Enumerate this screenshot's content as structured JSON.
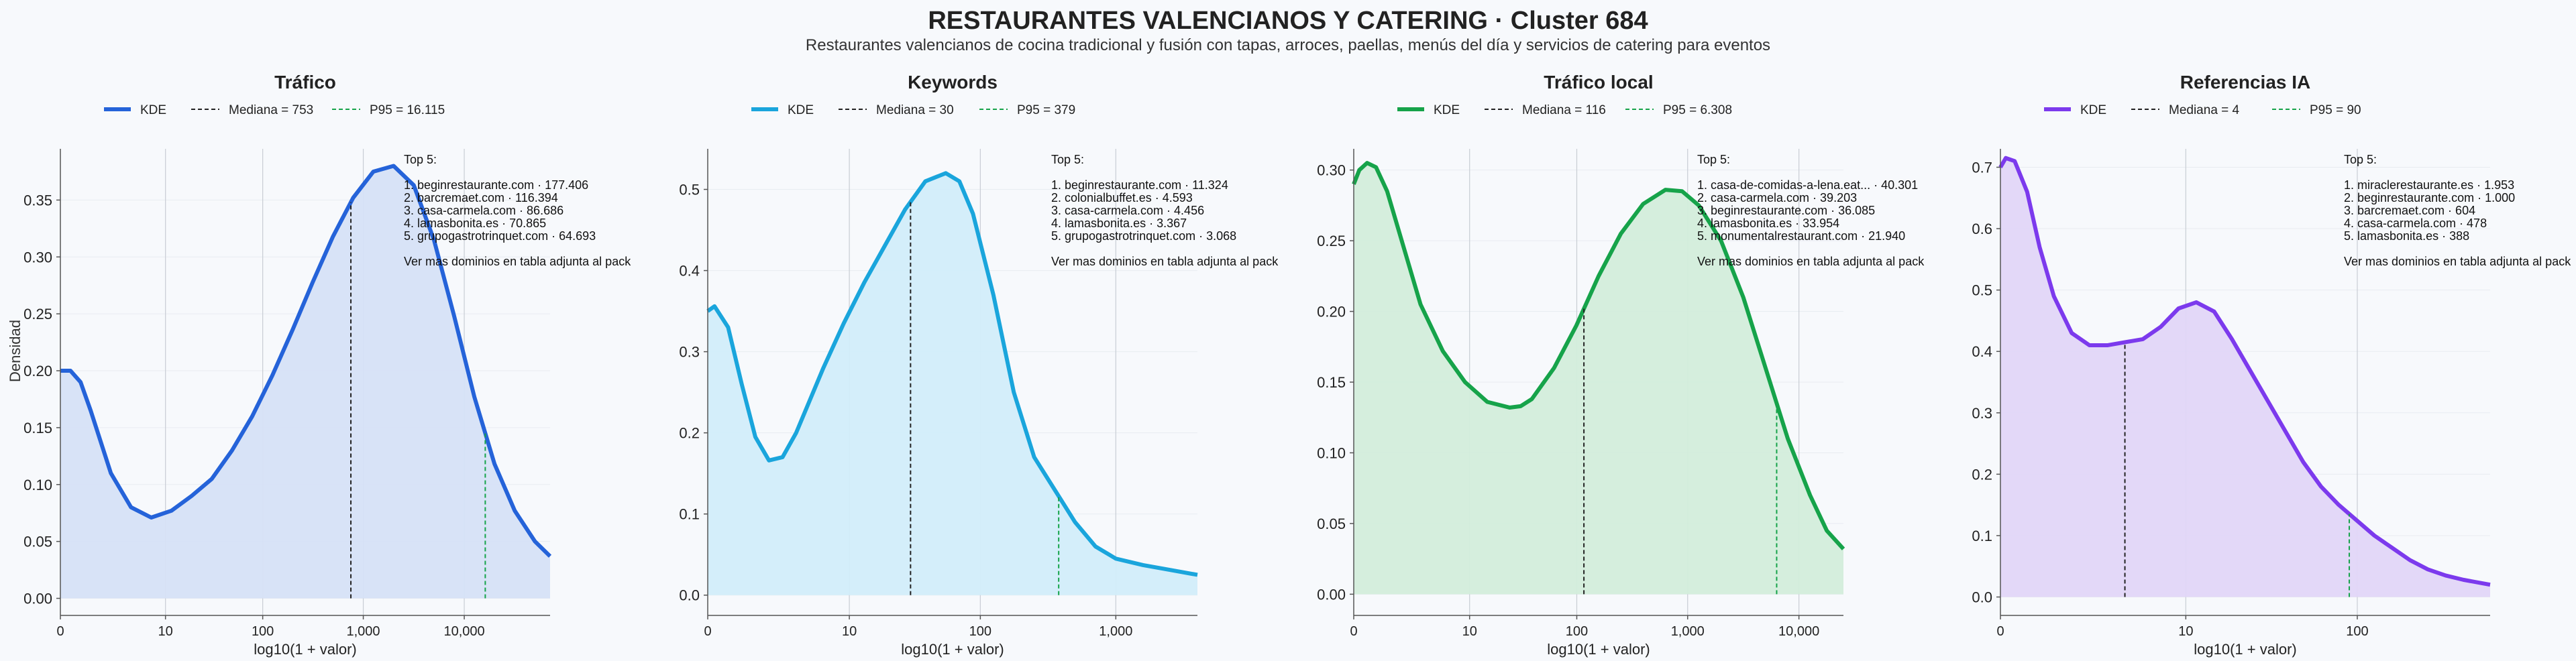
{
  "title": "RESTAURANTES VALENCIANOS Y CATERING · Cluster 684",
  "subtitle": "Restaurantes valencianos de cocina tradicional y fusión con tapas, arroces, paellas, menús del día y servicios de catering para eventos",
  "ylabel": "Densidad",
  "legend_kde": "KDE",
  "top_header": "Top 5:",
  "top_footer": "Ver mas dominios en tabla adjunta al pack",
  "chart_data": [
    {
      "type": "area",
      "title": "Tráfico",
      "color": "#2563d9",
      "fill": "#d6e1f7",
      "xlabel": "log10(1 + valor)",
      "xlim": [
        0,
        4.85
      ],
      "ylim": [
        -0.015,
        0.395
      ],
      "xticks": [
        {
          "v": 0,
          "label": "0"
        },
        {
          "v": 1.041,
          "label": "10"
        },
        {
          "v": 2.004,
          "label": "100"
        },
        {
          "v": 3.0,
          "label": "1,000"
        },
        {
          "v": 4.0,
          "label": "10,000"
        }
      ],
      "yticks": [
        {
          "v": 0,
          "label": "0.00"
        },
        {
          "v": 0.05,
          "label": "0.05"
        },
        {
          "v": 0.1,
          "label": "0.10"
        },
        {
          "v": 0.15,
          "label": "0.15"
        },
        {
          "v": 0.2,
          "label": "0.20"
        },
        {
          "v": 0.25,
          "label": "0.25"
        },
        {
          "v": 0.3,
          "label": "0.30"
        },
        {
          "v": 0.35,
          "label": "0.35"
        }
      ],
      "median": {
        "x": 2.877,
        "label": "Mediana = 753"
      },
      "p95": {
        "x": 4.208,
        "label": "P95 = 16.115"
      },
      "top5": [
        "1. beginrestaurante.com · 177.406",
        "2. barcremaet.com · 116.394",
        "3. casa-carmela.com · 86.686",
        "4. lamasbonita.es · 70.865",
        "5. grupogastrotrinquet.com · 64.693"
      ],
      "kde_x": [
        0,
        0.1,
        0.2,
        0.3,
        0.5,
        0.7,
        0.9,
        1.1,
        1.3,
        1.5,
        1.7,
        1.9,
        2.1,
        2.3,
        2.5,
        2.7,
        2.9,
        3.1,
        3.3,
        3.5,
        3.7,
        3.9,
        4.1,
        4.3,
        4.5,
        4.7,
        4.85
      ],
      "kde_y": [
        0.2,
        0.2,
        0.19,
        0.165,
        0.11,
        0.08,
        0.071,
        0.077,
        0.09,
        0.105,
        0.13,
        0.16,
        0.196,
        0.236,
        0.278,
        0.318,
        0.352,
        0.375,
        0.38,
        0.363,
        0.315,
        0.248,
        0.177,
        0.118,
        0.077,
        0.05,
        0.037
      ]
    },
    {
      "type": "area",
      "title": "Keywords",
      "color": "#1aa5dc",
      "fill": "#d2edfa",
      "xlabel": "log10(1 + valor)",
      "xlim": [
        0,
        3.6
      ],
      "ylim": [
        -0.025,
        0.55
      ],
      "xticks": [
        {
          "v": 0,
          "label": "0"
        },
        {
          "v": 1.041,
          "label": "10"
        },
        {
          "v": 2.004,
          "label": "100"
        },
        {
          "v": 3.0,
          "label": "1,000"
        }
      ],
      "yticks": [
        {
          "v": 0,
          "label": "0.0"
        },
        {
          "v": 0.1,
          "label": "0.1"
        },
        {
          "v": 0.2,
          "label": "0.2"
        },
        {
          "v": 0.3,
          "label": "0.3"
        },
        {
          "v": 0.4,
          "label": "0.4"
        },
        {
          "v": 0.5,
          "label": "0.5"
        }
      ],
      "median": {
        "x": 1.491,
        "label": "Mediana = 30"
      },
      "p95": {
        "x": 2.58,
        "label": "P95 = 379"
      },
      "top5": [
        "1. beginrestaurante.com · 11.324",
        "2. colonialbuffet.es · 4.593",
        "3. casa-carmela.com · 4.456",
        "4. lamasbonita.es · 3.367",
        "5. grupogastrotrinquet.com · 3.068"
      ],
      "kde_x": [
        0,
        0.05,
        0.15,
        0.25,
        0.35,
        0.45,
        0.55,
        0.65,
        0.75,
        0.85,
        1.0,
        1.15,
        1.3,
        1.45,
        1.6,
        1.75,
        1.85,
        1.95,
        2.1,
        2.25,
        2.4,
        2.55,
        2.7,
        2.85,
        3.0,
        3.2,
        3.4,
        3.6
      ],
      "kde_y": [
        0.35,
        0.356,
        0.33,
        0.26,
        0.195,
        0.166,
        0.17,
        0.2,
        0.24,
        0.28,
        0.335,
        0.385,
        0.43,
        0.475,
        0.51,
        0.52,
        0.51,
        0.47,
        0.37,
        0.25,
        0.17,
        0.13,
        0.09,
        0.06,
        0.045,
        0.037,
        0.031,
        0.025
      ]
    },
    {
      "type": "area",
      "title": "Tráfico local",
      "color": "#16a34a",
      "fill": "#d3eddb",
      "xlabel": "log10(1 + valor)",
      "xlim": [
        0,
        4.4
      ],
      "ylim": [
        -0.015,
        0.315
      ],
      "xticks": [
        {
          "v": 0,
          "label": "0"
        },
        {
          "v": 1.041,
          "label": "10"
        },
        {
          "v": 2.004,
          "label": "100"
        },
        {
          "v": 3.0,
          "label": "1,000"
        },
        {
          "v": 4.0,
          "label": "10,000"
        }
      ],
      "yticks": [
        {
          "v": 0,
          "label": "0.00"
        },
        {
          "v": 0.05,
          "label": "0.05"
        },
        {
          "v": 0.1,
          "label": "0.10"
        },
        {
          "v": 0.15,
          "label": "0.15"
        },
        {
          "v": 0.2,
          "label": "0.20"
        },
        {
          "v": 0.25,
          "label": "0.25"
        },
        {
          "v": 0.3,
          "label": "0.30"
        }
      ],
      "median": {
        "x": 2.068,
        "label": "Mediana = 116"
      },
      "p95": {
        "x": 3.8,
        "label": "P95 = 6.308"
      },
      "top5": [
        "1. casa-de-comidas-a-lena.eat... · 40.301",
        "2. casa-carmela.com · 39.203",
        "3. beginrestaurante.com · 36.085",
        "4. lamasbonita.es · 33.954",
        "5. monumentalrestaurant.com · 21.940"
      ],
      "kde_x": [
        0,
        0.05,
        0.12,
        0.2,
        0.3,
        0.45,
        0.6,
        0.8,
        1.0,
        1.2,
        1.4,
        1.5,
        1.6,
        1.8,
        2.0,
        2.2,
        2.4,
        2.6,
        2.8,
        2.95,
        3.1,
        3.3,
        3.5,
        3.7,
        3.9,
        4.1,
        4.25,
        4.4
      ],
      "kde_y": [
        0.29,
        0.3,
        0.305,
        0.302,
        0.285,
        0.245,
        0.205,
        0.172,
        0.15,
        0.136,
        0.132,
        0.133,
        0.138,
        0.16,
        0.19,
        0.225,
        0.255,
        0.276,
        0.286,
        0.285,
        0.275,
        0.25,
        0.21,
        0.16,
        0.11,
        0.07,
        0.045,
        0.032
      ]
    },
    {
      "type": "area",
      "title": "Referencias IA",
      "color": "#7c3aed",
      "fill": "#e1d6f8",
      "xlabel": "log10(1 + valor)",
      "xlim": [
        0,
        2.75
      ],
      "ylim": [
        -0.03,
        0.73
      ],
      "xticks": [
        {
          "v": 0,
          "label": "0"
        },
        {
          "v": 1.041,
          "label": "10"
        },
        {
          "v": 2.004,
          "label": "100"
        }
      ],
      "yticks": [
        {
          "v": 0,
          "label": "0.0"
        },
        {
          "v": 0.1,
          "label": "0.1"
        },
        {
          "v": 0.2,
          "label": "0.2"
        },
        {
          "v": 0.3,
          "label": "0.3"
        },
        {
          "v": 0.4,
          "label": "0.4"
        },
        {
          "v": 0.5,
          "label": "0.5"
        },
        {
          "v": 0.6,
          "label": "0.6"
        },
        {
          "v": 0.7,
          "label": "0.7"
        }
      ],
      "median": {
        "x": 0.699,
        "label": "Mediana = 4"
      },
      "p95": {
        "x": 1.959,
        "label": "P95 = 90"
      },
      "top5": [
        "1. miraclerestaurante.es · 1.953",
        "2. beginrestaurante.com · 1.000",
        "3. barcremaet.com · 604",
        "4. casa-carmela.com · 478",
        "5. lamasbonita.es · 388"
      ],
      "kde_x": [
        0,
        0.03,
        0.08,
        0.15,
        0.22,
        0.3,
        0.4,
        0.5,
        0.6,
        0.7,
        0.8,
        0.9,
        1.0,
        1.1,
        1.2,
        1.3,
        1.4,
        1.5,
        1.6,
        1.7,
        1.8,
        1.9,
        2.0,
        2.1,
        2.2,
        2.3,
        2.4,
        2.5,
        2.6,
        2.75
      ],
      "kde_y": [
        0.7,
        0.715,
        0.71,
        0.66,
        0.57,
        0.49,
        0.43,
        0.41,
        0.41,
        0.415,
        0.42,
        0.44,
        0.47,
        0.48,
        0.465,
        0.42,
        0.37,
        0.32,
        0.27,
        0.22,
        0.18,
        0.15,
        0.125,
        0.1,
        0.08,
        0.06,
        0.045,
        0.035,
        0.028,
        0.02
      ]
    }
  ]
}
